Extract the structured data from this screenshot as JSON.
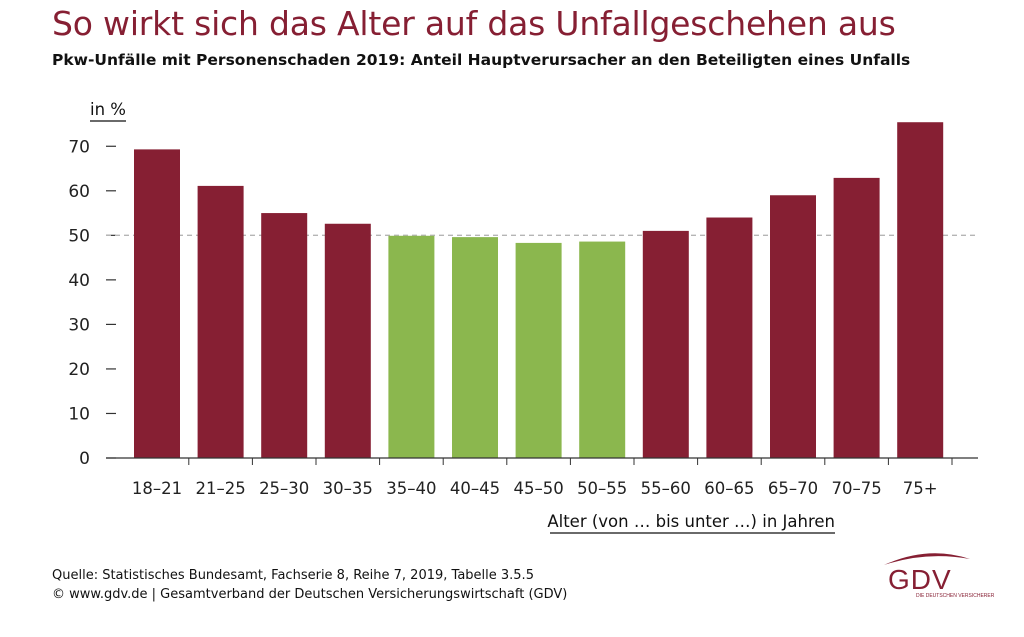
{
  "header": {
    "title": "So wirkt sich das Alter auf das Unfallgeschehen aus",
    "subtitle": "Pkw-Unfälle mit Personenschaden 2019: Anteil Hauptverursacher an den Beteiligten eines Unfalls"
  },
  "chart_data": {
    "type": "bar",
    "ylabel": "in %",
    "xlabel": "Alter (von … bis unter …) in Jahren",
    "categories": [
      "18–21",
      "21–25",
      "25–30",
      "30–35",
      "35–40",
      "40–45",
      "45–50",
      "50–55",
      "55–60",
      "60–65",
      "65–70",
      "70–75",
      "75+"
    ],
    "values": [
      69.3,
      61.1,
      55.0,
      52.6,
      49.9,
      49.6,
      48.3,
      48.6,
      51.0,
      54.0,
      59.0,
      62.9,
      75.4
    ],
    "ylim": [
      0,
      75
    ],
    "yticks": [
      0,
      10,
      20,
      30,
      40,
      50,
      60,
      70
    ],
    "reference_line": 50,
    "colors": {
      "above": "#861f33",
      "below": "#8bb74e",
      "reference": "#b5b5b5",
      "axis": "#333333"
    }
  },
  "footer": {
    "source_line": "Quelle: Statistisches Bundesamt, Fachserie 8, Reihe 7, 2019, Tabelle 3.5.5",
    "copyright_line": "© www.gdv.de | Gesamtverband der Deutschen Versicherungswirtschaft (GDV)"
  },
  "logo": {
    "text": "GDV",
    "tagline": "DIE DEUTSCHEN VERSICHERER",
    "color": "#861f33"
  }
}
